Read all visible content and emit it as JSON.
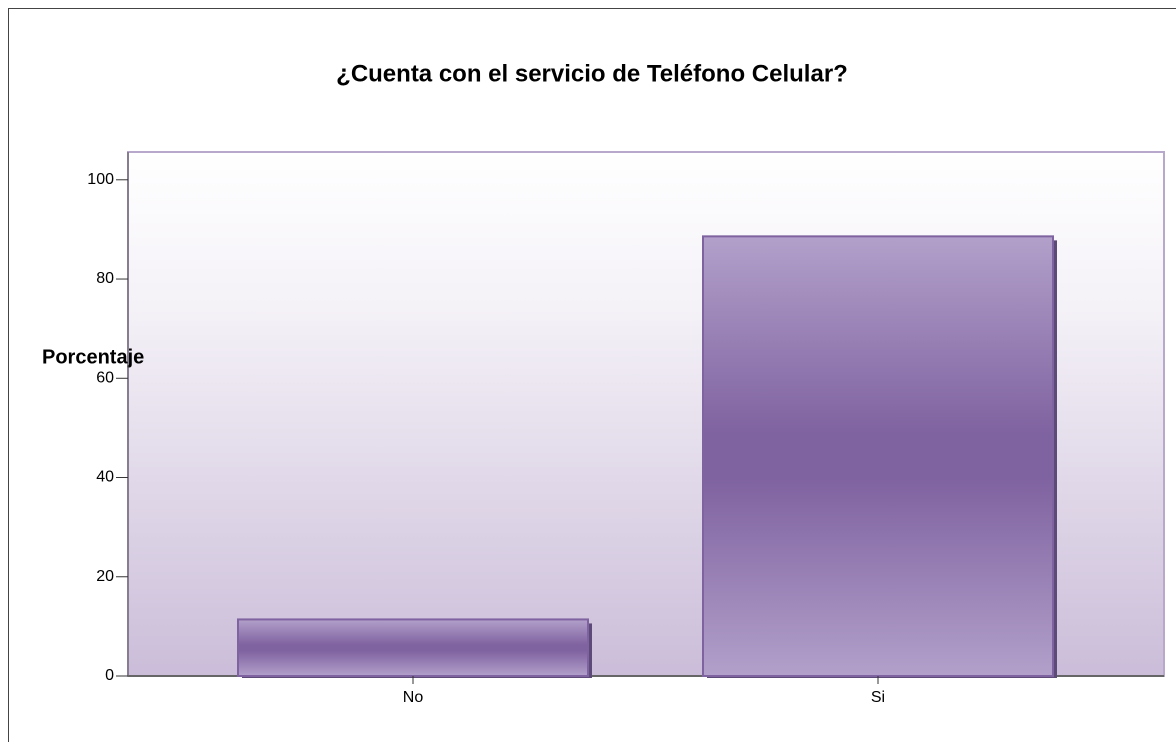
{
  "chart_data": {
    "type": "bar",
    "title": "¿Cuenta con el servicio de Teléfono Celular?",
    "y_label": "Porcentaje",
    "categories": [
      "No",
      "Si"
    ],
    "values": [
      11.4,
      88.6
    ],
    "color": "#7f62a0",
    "ylim": [
      0,
      105.6
    ],
    "yticks": [
      0,
      20,
      40,
      60,
      80,
      100
    ],
    "grid": false
  }
}
